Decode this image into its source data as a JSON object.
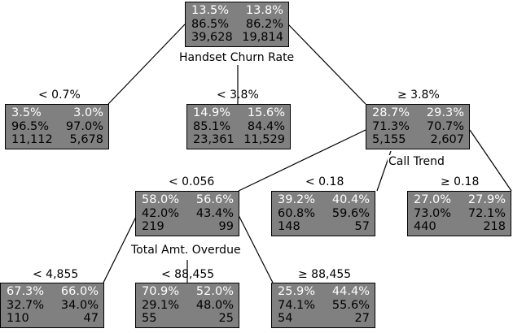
{
  "tree": {
    "nodes": [
      {
        "id": "root",
        "rows": [
          [
            "13.5%",
            "13.8%"
          ],
          [
            "86.5%",
            "86.2%"
          ],
          [
            "39,628",
            "19,814"
          ]
        ]
      },
      {
        "id": "n_lt07",
        "rows": [
          [
            "3.5%",
            "3.0%"
          ],
          [
            "96.5%",
            "97.0%"
          ],
          [
            "11,112",
            "5,678"
          ]
        ]
      },
      {
        "id": "n_lt38",
        "rows": [
          [
            "14.9%",
            "15.6%"
          ],
          [
            "85.1%",
            "84.4%"
          ],
          [
            "23,361",
            "11,529"
          ]
        ]
      },
      {
        "id": "n_ge38",
        "rows": [
          [
            "28.7%",
            "29.3%"
          ],
          [
            "71.3%",
            "70.7%"
          ],
          [
            "5,155",
            "2,607"
          ]
        ]
      },
      {
        "id": "n_lt0056",
        "rows": [
          [
            "58.0%",
            "56.6%"
          ],
          [
            "42.0%",
            "43.4%"
          ],
          [
            "219",
            "99"
          ]
        ]
      },
      {
        "id": "n_lt018",
        "rows": [
          [
            "39.2%",
            "40.4%"
          ],
          [
            "60.8%",
            "59.6%"
          ],
          [
            "148",
            "57"
          ]
        ]
      },
      {
        "id": "n_ge018",
        "rows": [
          [
            "27.0%",
            "27.9%"
          ],
          [
            "73.0%",
            "72.1%"
          ],
          [
            "440",
            "218"
          ]
        ]
      },
      {
        "id": "n_lt4855",
        "rows": [
          [
            "67.3%",
            "66.0%"
          ],
          [
            "32.7%",
            "34.0%"
          ],
          [
            "110",
            "47"
          ]
        ]
      },
      {
        "id": "n_lt88455",
        "rows": [
          [
            "70.9%",
            "52.0%"
          ],
          [
            "29.1%",
            "48.0%"
          ],
          [
            "55",
            "25"
          ]
        ]
      },
      {
        "id": "n_ge88455",
        "rows": [
          [
            "25.9%",
            "44.4%"
          ],
          [
            "74.1%",
            "55.6%"
          ],
          [
            "54",
            "27"
          ]
        ]
      }
    ],
    "split_labels": {
      "root": "Handset Churn Rate",
      "n_ge38": "Call Trend",
      "n_lt0056": "Total Amt. Overdue"
    },
    "conditions": {
      "lt07": "< 0.7%",
      "lt38": "< 3.8%",
      "ge38": "≥ 3.8%",
      "lt0056": "< 0.056",
      "lt018": "< 0.18",
      "ge018": "≥ 0.18",
      "lt4855": "< 4,855",
      "lt88455": "< 88,455",
      "ge88455": "≥ 88,455"
    }
  }
}
